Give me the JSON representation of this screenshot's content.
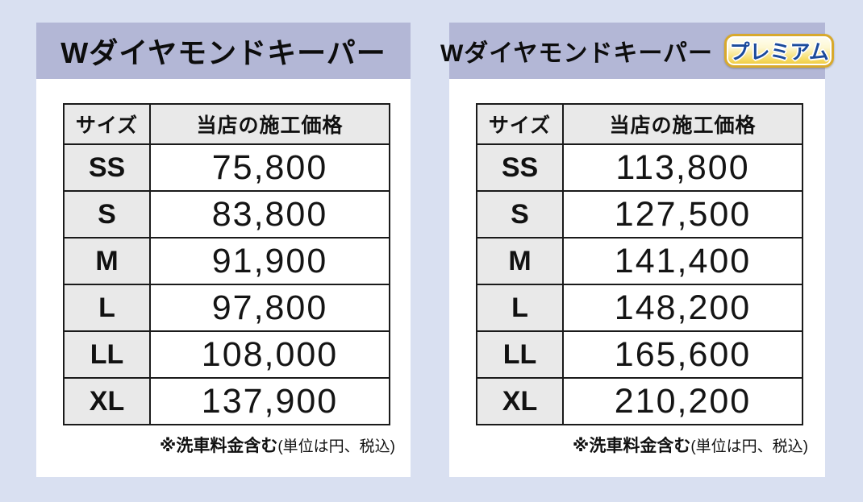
{
  "page": {
    "background_color": "#d9e0f1",
    "band_color": "#b3b7d6",
    "cell_gray_color": "#e9e9e9",
    "border_color": "#1a1a1a",
    "badge_gold_color": "#eec737",
    "badge_text_color": "#1b4a9b"
  },
  "panels": [
    {
      "title": "Wダイヤモンドキーパー",
      "table": {
        "headers": [
          "サイズ",
          "当店の施工価格"
        ],
        "rows": [
          [
            "SS",
            "75,800"
          ],
          [
            "S",
            "83,800"
          ],
          [
            "M",
            "91,900"
          ],
          [
            "L",
            "97,800"
          ],
          [
            "LL",
            "108,000"
          ],
          [
            "XL",
            "137,900"
          ]
        ]
      },
      "note_bold": "※洗車料金含む",
      "note_regular": "(単位は円、税込)"
    },
    {
      "title": "Wダイヤモンドキーパー",
      "badge": "プレミアム",
      "table": {
        "headers": [
          "サイズ",
          "当店の施工価格"
        ],
        "rows": [
          [
            "SS",
            "113,800"
          ],
          [
            "S",
            "127,500"
          ],
          [
            "M",
            "141,400"
          ],
          [
            "L",
            "148,200"
          ],
          [
            "LL",
            "165,600"
          ],
          [
            "XL",
            "210,200"
          ]
        ]
      },
      "note_bold": "※洗車料金含む",
      "note_regular": "(単位は円、税込)"
    }
  ],
  "chart_data": [
    {
      "type": "table",
      "title": "Wダイヤモンドキーパー",
      "columns": [
        "サイズ",
        "当店の施工価格"
      ],
      "rows": [
        [
          "SS",
          75800
        ],
        [
          "S",
          83800
        ],
        [
          "M",
          91900
        ],
        [
          "L",
          97800
        ],
        [
          "LL",
          108000
        ],
        [
          "XL",
          137900
        ]
      ],
      "note": "※洗車料金含む(単位は円、税込)"
    },
    {
      "type": "table",
      "title": "Wダイヤモンドキーパー プレミアム",
      "columns": [
        "サイズ",
        "当店の施工価格"
      ],
      "rows": [
        [
          "SS",
          113800
        ],
        [
          "S",
          127500
        ],
        [
          "M",
          141400
        ],
        [
          "L",
          148200
        ],
        [
          "LL",
          165600
        ],
        [
          "XL",
          210200
        ]
      ],
      "note": "※洗車料金含む(単位は円、税込)"
    }
  ]
}
